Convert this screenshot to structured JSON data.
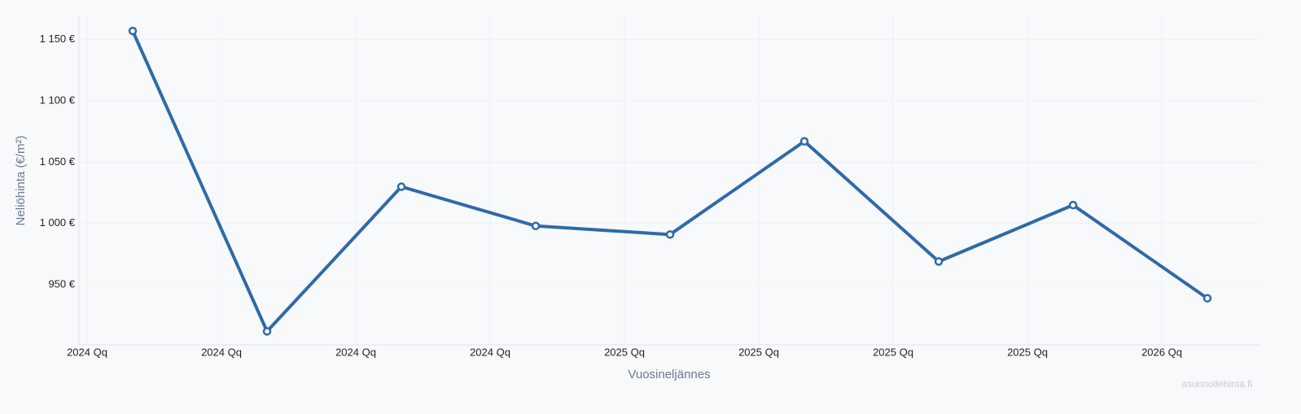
{
  "chart_data": {
    "type": "line",
    "y_label": "Neliöhinta (€/m²)",
    "x_label": "Vuosineljännes",
    "watermark": "asunnollehinta.fi",
    "categories": [
      "2024 Qq",
      "2024 Qq",
      "2024 Qq",
      "2024 Qq",
      "2025 Qq",
      "2025 Qq",
      "2025 Qq",
      "2025 Qq",
      "2026 Qq"
    ],
    "series": [
      {
        "name": "Neliöhinta",
        "color": "#2f6aa8",
        "values": [
          1157,
          912,
          1030,
          998,
          991,
          1067,
          969,
          1015,
          939
        ]
      }
    ],
    "ylim": [
      901,
      1169
    ],
    "yticks": [
      {
        "value": 950,
        "label": "950 €"
      },
      {
        "value": 1000,
        "label": "1 000 €"
      },
      {
        "value": 1050,
        "label": "1 050 €"
      },
      {
        "value": 1100,
        "label": "1 100 €"
      },
      {
        "value": 1150,
        "label": "1 150 €"
      }
    ],
    "grid": true
  }
}
